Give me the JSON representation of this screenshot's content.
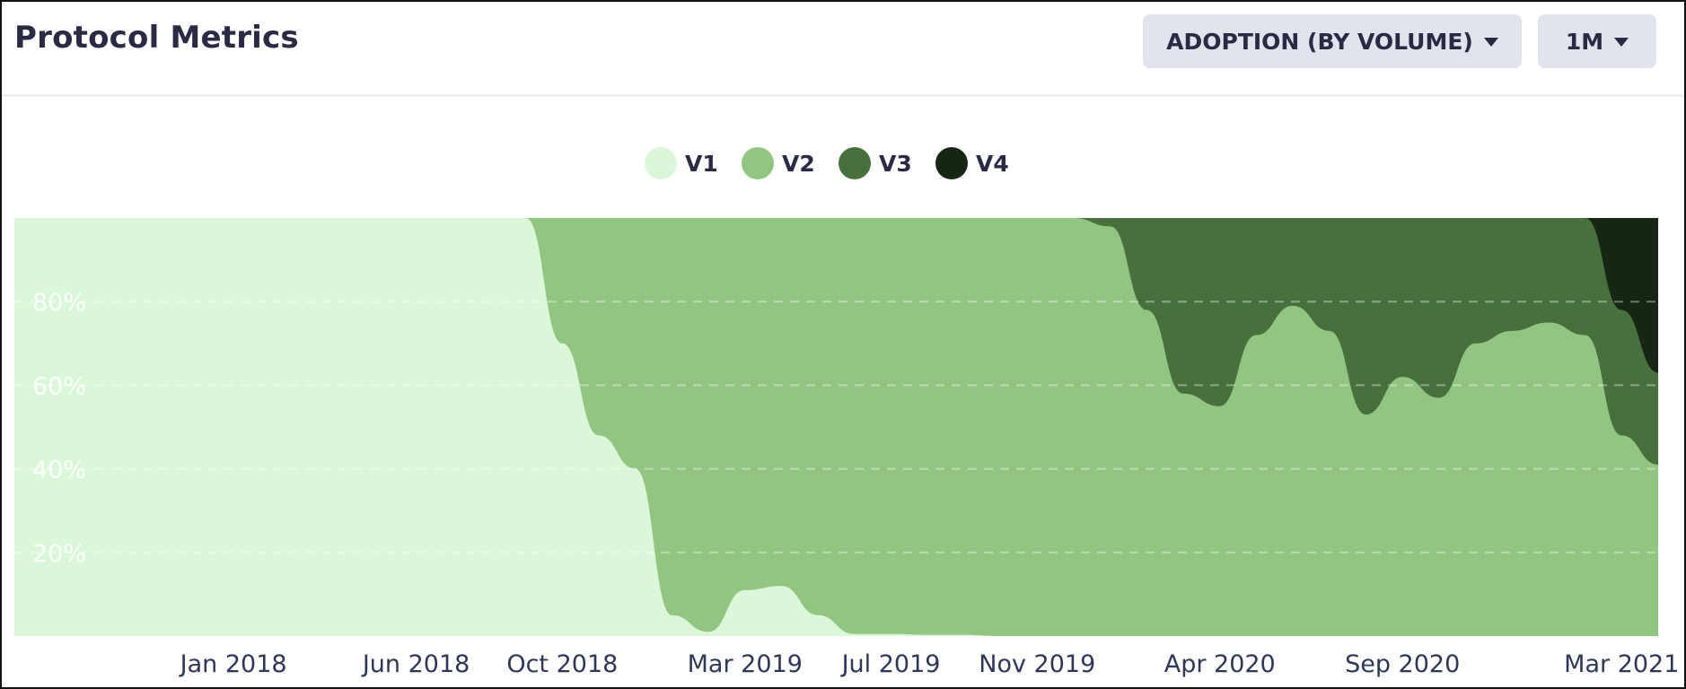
{
  "header": {
    "title": "Protocol Metrics",
    "metric_dropdown": "ADOPTION (BY VOLUME)",
    "range_dropdown": "1M",
    "icons": {
      "metric_caret": "chevron-down-icon",
      "range_caret": "chevron-down-icon"
    }
  },
  "chart_data": {
    "type": "area",
    "stacked": true,
    "normalized": true,
    "title": "",
    "xlabel": "",
    "ylabel": "",
    "ylim": [
      0,
      100
    ],
    "grid": true,
    "legend": "top-center",
    "x_ticks": [
      "Jan 2018",
      "Jun 2018",
      "Oct 2018",
      "Mar 2019",
      "Jul 2019",
      "Nov 2019",
      "Apr 2020",
      "Sep 2020",
      "Mar 2021"
    ],
    "y_ticks": [
      "20%",
      "40%",
      "60%",
      "80%"
    ],
    "x": [
      "2017-07",
      "2018-01",
      "2018-06",
      "2018-08",
      "2018-09",
      "2018-10",
      "2018-11",
      "2018-12",
      "2019-01",
      "2019-02",
      "2019-03",
      "2019-04",
      "2019-05",
      "2019-06",
      "2019-07",
      "2019-08",
      "2019-09",
      "2019-10",
      "2019-11",
      "2019-12",
      "2020-01",
      "2020-02",
      "2020-03",
      "2020-04",
      "2020-05",
      "2020-06",
      "2020-07",
      "2020-08",
      "2020-09",
      "2020-10",
      "2020-11",
      "2020-12",
      "2021-01",
      "2021-02",
      "2021-03",
      "2021-04"
    ],
    "series": [
      {
        "name": "V1",
        "color": "#dbf7d9",
        "values": [
          100,
          100,
          100,
          100,
          100,
          70,
          48,
          40,
          5,
          1,
          11,
          12,
          5,
          0.5,
          0.5,
          0.3,
          0.3,
          0,
          0,
          0,
          0,
          0,
          0,
          0,
          0,
          0,
          0,
          0,
          0,
          0,
          0,
          0,
          0,
          0,
          0,
          0
        ]
      },
      {
        "name": "V2",
        "color": "#92c582",
        "values": [
          0,
          0,
          0,
          0,
          0,
          30,
          52,
          60,
          95,
          99,
          89,
          88,
          95,
          99.5,
          99.5,
          99.7,
          99.7,
          100,
          100,
          100,
          98,
          78,
          58,
          55,
          72,
          79,
          73,
          53,
          62,
          57,
          70,
          73,
          75,
          72,
          48,
          41
        ]
      },
      {
        "name": "V3",
        "color": "#48703d",
        "values": [
          0,
          0,
          0,
          0,
          0,
          0,
          0,
          0,
          0,
          0,
          0,
          0,
          0,
          0,
          0,
          0,
          0,
          0,
          0,
          0,
          2,
          22,
          42,
          45,
          28,
          21,
          27,
          47,
          38,
          43,
          30,
          27,
          25,
          28,
          30,
          22
        ]
      },
      {
        "name": "V4",
        "color": "#172614",
        "values": [
          0,
          0,
          0,
          0,
          0,
          0,
          0,
          0,
          0,
          0,
          0,
          0,
          0,
          0,
          0,
          0,
          0,
          0,
          0,
          0,
          0,
          0,
          0,
          0,
          0,
          0,
          0,
          0,
          0,
          0,
          0,
          0,
          0,
          0,
          22,
          37
        ]
      }
    ]
  }
}
